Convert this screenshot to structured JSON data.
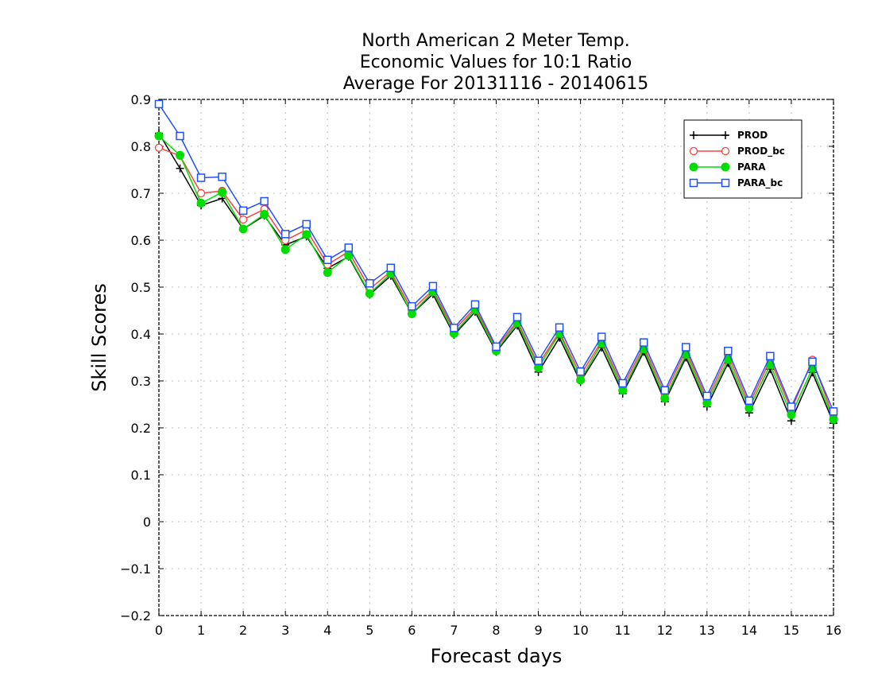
{
  "chart_data": {
    "type": "line",
    "title": [
      "North American 2 Meter Temp.",
      "Economic Values for 10:1 Ratio",
      "Average For 20131116 - 20140615"
    ],
    "xlabel": "Forecast days",
    "ylabel": "Skill Scores",
    "xlim": [
      0,
      16
    ],
    "ylim": [
      -0.2,
      0.9
    ],
    "xticks": [
      0,
      1,
      2,
      3,
      4,
      5,
      6,
      7,
      8,
      9,
      10,
      11,
      12,
      13,
      14,
      15,
      16
    ],
    "yticks": [
      -0.2,
      -0.1,
      0,
      0.1,
      0.2,
      0.3,
      0.4,
      0.5,
      0.6,
      0.7,
      0.8,
      0.9
    ],
    "ytick_labels": [
      "−0.2",
      "−0.1",
      "0",
      "0.1",
      "0.2",
      "0.3",
      "0.4",
      "0.5",
      "0.6",
      "0.7",
      "0.8",
      "0.9"
    ],
    "grid": true,
    "legend_position": "top-right",
    "x": [
      0,
      0.5,
      1,
      1.5,
      2,
      2.5,
      3,
      3.5,
      4,
      4.5,
      5,
      5.5,
      6,
      6.5,
      7,
      7.5,
      8,
      8.5,
      9,
      9.5,
      10,
      10.5,
      11,
      11.5,
      12,
      12.5,
      13,
      13.5,
      14,
      14.5,
      15,
      15.5,
      16
    ],
    "series": [
      {
        "name": "PROD",
        "color": "#000000",
        "marker": "plus",
        "values": [
          0.828,
          0.753,
          0.674,
          0.689,
          0.624,
          0.652,
          0.59,
          0.608,
          0.54,
          0.565,
          0.484,
          0.524,
          0.443,
          0.485,
          0.398,
          0.447,
          0.362,
          0.418,
          0.319,
          0.392,
          0.298,
          0.371,
          0.273,
          0.362,
          0.256,
          0.35,
          0.245,
          0.338,
          0.232,
          0.325,
          0.215,
          0.318,
          0.21
        ]
      },
      {
        "name": "PROD_bc",
        "color": "#ff4040",
        "marker": "open-circle",
        "values": [
          0.797,
          0.78,
          0.7,
          0.705,
          0.644,
          0.666,
          0.6,
          0.622,
          0.548,
          0.576,
          0.496,
          0.533,
          0.451,
          0.494,
          0.408,
          0.456,
          0.37,
          0.428,
          0.335,
          0.405,
          0.312,
          0.385,
          0.288,
          0.374,
          0.272,
          0.365,
          0.26,
          0.355,
          0.25,
          0.345,
          0.238,
          0.345,
          0.222
        ]
      },
      {
        "name": "PARA",
        "color": "#00dd00",
        "marker": "filled-circle",
        "values": [
          0.822,
          0.781,
          0.679,
          0.702,
          0.624,
          0.655,
          0.58,
          0.612,
          0.531,
          0.567,
          0.486,
          0.529,
          0.443,
          0.49,
          0.401,
          0.452,
          0.364,
          0.424,
          0.328,
          0.401,
          0.302,
          0.38,
          0.28,
          0.368,
          0.263,
          0.357,
          0.253,
          0.346,
          0.242,
          0.335,
          0.228,
          0.327,
          0.218
        ]
      },
      {
        "name": "PARA_bc",
        "color": "#2050ff",
        "marker": "open-square",
        "values": [
          0.89,
          0.822,
          0.733,
          0.735,
          0.663,
          0.683,
          0.613,
          0.634,
          0.558,
          0.584,
          0.508,
          0.541,
          0.459,
          0.502,
          0.413,
          0.463,
          0.373,
          0.436,
          0.343,
          0.414,
          0.32,
          0.394,
          0.295,
          0.382,
          0.28,
          0.372,
          0.268,
          0.364,
          0.258,
          0.353,
          0.245,
          0.341,
          0.235
        ]
      }
    ]
  }
}
